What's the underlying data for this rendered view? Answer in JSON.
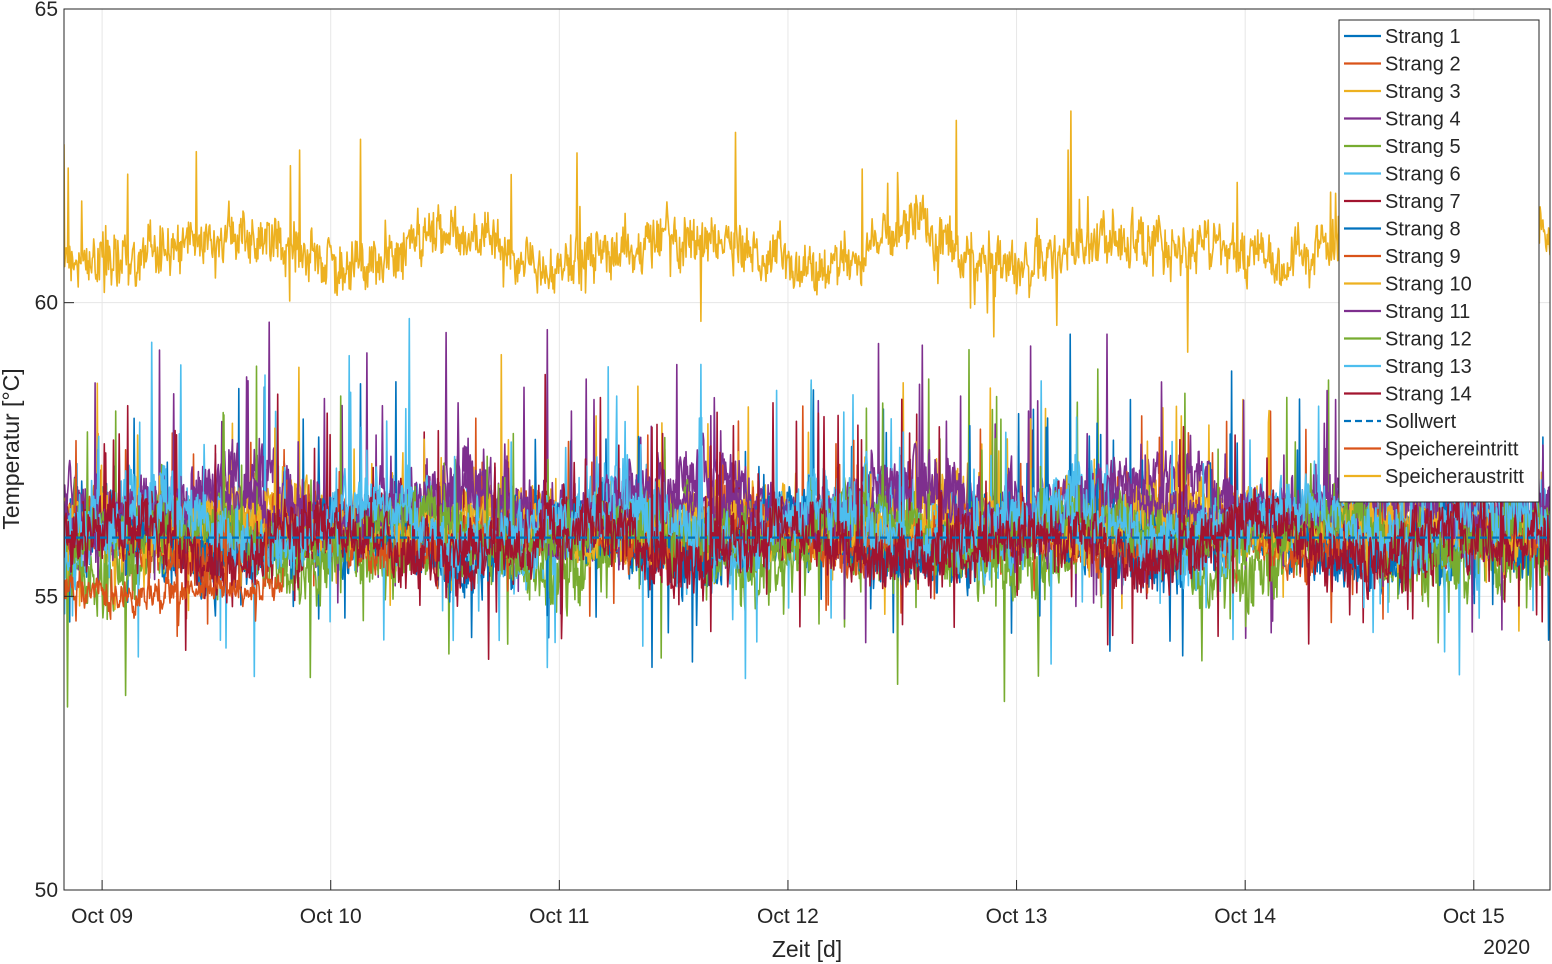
{
  "chart_data": {
    "type": "line",
    "xlabel": "Zeit [d]",
    "ylabel": "Temperatur [°C]",
    "year_label": "2020",
    "x_ticks": [
      "Oct 09",
      "Oct 10",
      "Oct 11",
      "Oct 12",
      "Oct 13",
      "Oct 14",
      "Oct 15"
    ],
    "xlim": [
      "2020-10-08 20:00",
      "2020-10-15 08:00"
    ],
    "y_ticks": [
      50,
      55,
      60,
      65
    ],
    "ylim": [
      50,
      65
    ],
    "grid": true,
    "legend_position": "top-right",
    "setpoint": 56,
    "series": [
      {
        "name": "Strang 1",
        "color": "#0072BD",
        "style": "solid",
        "mean": 55.9,
        "spread": 0.9
      },
      {
        "name": "Strang 2",
        "color": "#D95319",
        "style": "solid",
        "mean": 56.1,
        "spread": 0.7
      },
      {
        "name": "Strang 3",
        "color": "#EDB120",
        "style": "solid",
        "mean": 56.3,
        "spread": 0.8
      },
      {
        "name": "Strang 4",
        "color": "#7E2F8E",
        "style": "solid",
        "mean": 56.6,
        "spread": 0.9
      },
      {
        "name": "Strang 5",
        "color": "#77AC30",
        "style": "solid",
        "mean": 55.8,
        "spread": 1.0
      },
      {
        "name": "Strang 6",
        "color": "#4DBEEE",
        "style": "solid",
        "mean": 56.2,
        "spread": 1.0
      },
      {
        "name": "Strang 7",
        "color": "#A2142F",
        "style": "solid",
        "mean": 56.0,
        "spread": 0.8
      },
      {
        "name": "Strang 8",
        "color": "#0072BD",
        "style": "solid",
        "mean": 56.0,
        "spread": 0.7
      },
      {
        "name": "Strang 9",
        "color": "#D95319",
        "style": "solid",
        "mean": 56.0,
        "spread": 0.6
      },
      {
        "name": "Strang 10",
        "color": "#EDB120",
        "style": "solid",
        "mean": 56.2,
        "spread": 0.6
      },
      {
        "name": "Strang 11",
        "color": "#7E2F8E",
        "style": "solid",
        "mean": 56.5,
        "spread": 0.8
      },
      {
        "name": "Strang 12",
        "color": "#77AC30",
        "style": "solid",
        "mean": 56.1,
        "spread": 0.7
      },
      {
        "name": "Strang 13",
        "color": "#4DBEEE",
        "style": "solid",
        "mean": 56.2,
        "spread": 0.8
      },
      {
        "name": "Strang 14",
        "color": "#A2142F",
        "style": "solid",
        "mean": 55.9,
        "spread": 0.8
      },
      {
        "name": "Sollwert",
        "color": "#0072BD",
        "style": "dashed",
        "value": 56.0
      },
      {
        "name": "Speichereintritt",
        "color": "#D95319",
        "style": "solid",
        "mean": 55.1,
        "spread": 0.4,
        "x_end": "2020-10-09 19:00"
      },
      {
        "name": "Speicheraustritt",
        "color": "#EDB120",
        "style": "solid",
        "mean": 60.9,
        "spread": 0.7
      }
    ]
  }
}
